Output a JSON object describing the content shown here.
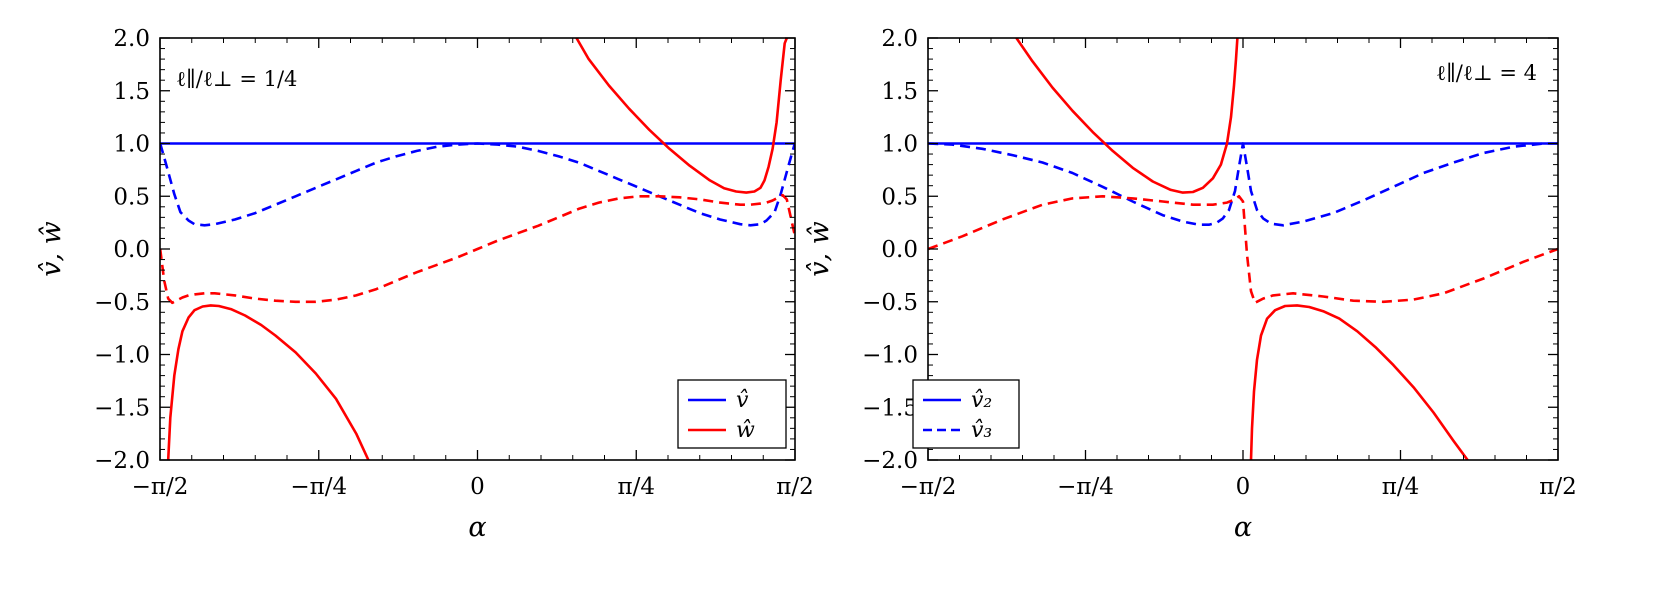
{
  "chart_data": [
    {
      "type": "line",
      "panel": "left",
      "annotation": "ℓ∥/ℓ⊥ = 1/4",
      "xlabel": "α",
      "ylabel": "v̂, ŵ",
      "xlim": [
        -1.5708,
        1.5708
      ],
      "ylim": [
        -2.0,
        2.0
      ],
      "xticks": [
        -1.5708,
        -0.7854,
        0,
        0.7854,
        1.5708
      ],
      "xtick_labels": [
        "−π/2",
        "−π/4",
        "0",
        "π/4",
        "π/2"
      ],
      "yticks": [
        -2.0,
        -1.5,
        -1.0,
        -0.5,
        0.0,
        0.5,
        1.0,
        1.5,
        2.0
      ],
      "ytick_labels": [
        "−2.0",
        "−1.5",
        "−1.0",
        "−0.5",
        "0.0",
        "0.5",
        "1.0",
        "1.5",
        "2.0"
      ],
      "grid": false,
      "legend_position": "bottom-right",
      "legend": [
        {
          "label": "v̂",
          "color": "#0000ff",
          "dash": "solid"
        },
        {
          "label": "ŵ",
          "color": "#ff0000",
          "dash": "solid"
        }
      ],
      "series": [
        {
          "color": "#0000ff",
          "dash": "solid",
          "x": [
            -1.5708,
            1.5708
          ],
          "y": [
            1.0,
            1.0
          ]
        },
        {
          "color": "#0000ff",
          "dash": "dashed",
          "x": [
            -1.57,
            -1.54,
            -1.5,
            -1.47,
            -1.43,
            -1.4,
            -1.35,
            -1.3,
            -1.2,
            -1.1,
            -1.0,
            -0.9,
            -0.8,
            -0.7,
            -0.6,
            -0.5,
            -0.4,
            -0.3,
            -0.2,
            -0.1,
            0.0,
            0.1,
            0.2,
            0.3,
            0.4,
            0.5,
            0.6,
            0.7,
            0.8,
            0.9,
            1.0,
            1.1,
            1.2,
            1.3,
            1.35,
            1.4,
            1.43,
            1.47,
            1.5,
            1.54,
            1.57
          ],
          "y": [
            1.0,
            0.8,
            0.52,
            0.35,
            0.27,
            0.235,
            0.225,
            0.235,
            0.28,
            0.34,
            0.42,
            0.5,
            0.58,
            0.66,
            0.74,
            0.82,
            0.88,
            0.93,
            0.97,
            0.99,
            1.0,
            0.99,
            0.97,
            0.93,
            0.88,
            0.82,
            0.74,
            0.66,
            0.58,
            0.5,
            0.42,
            0.34,
            0.28,
            0.235,
            0.225,
            0.235,
            0.27,
            0.35,
            0.52,
            0.8,
            1.0
          ]
        },
        {
          "color": "#ff0000",
          "dash": "dashed",
          "x": [
            -1.57,
            -1.55,
            -1.53,
            -1.51,
            -1.49,
            -1.46,
            -1.43,
            -1.4,
            -1.35,
            -1.3,
            -1.2,
            -1.1,
            -1.0,
            -0.9,
            -0.8,
            -0.7,
            -0.6,
            -0.5,
            -0.4,
            -0.3,
            -0.2,
            -0.1,
            0.0,
            0.1,
            0.2,
            0.3,
            0.4,
            0.5,
            0.6,
            0.7,
            0.8,
            0.9,
            1.0,
            1.1,
            1.2,
            1.3,
            1.35,
            1.4,
            1.43,
            1.46,
            1.49,
            1.51,
            1.53,
            1.55,
            1.57
          ],
          "y": [
            0.0,
            -0.3,
            -0.47,
            -0.51,
            -0.49,
            -0.46,
            -0.44,
            -0.43,
            -0.42,
            -0.42,
            -0.44,
            -0.47,
            -0.49,
            -0.5,
            -0.5,
            -0.48,
            -0.44,
            -0.38,
            -0.3,
            -0.22,
            -0.15,
            -0.08,
            0.0,
            0.08,
            0.15,
            0.22,
            0.3,
            0.38,
            0.44,
            0.48,
            0.5,
            0.5,
            0.49,
            0.47,
            0.44,
            0.42,
            0.42,
            0.43,
            0.44,
            0.46,
            0.49,
            0.51,
            0.47,
            0.3,
            0.13
          ]
        },
        {
          "color": "#ff0000",
          "dash": "solid",
          "x": [
            -1.53,
            -1.52,
            -1.5,
            -1.48,
            -1.46,
            -1.43,
            -1.4,
            -1.36,
            -1.32,
            -1.28,
            -1.22,
            -1.15,
            -1.07,
            -1.0,
            -0.9,
            -0.8,
            -0.7,
            -0.6,
            -0.54
          ],
          "y": [
            -2.0,
            -1.6,
            -1.2,
            -0.95,
            -0.78,
            -0.65,
            -0.58,
            -0.545,
            -0.535,
            -0.54,
            -0.57,
            -0.63,
            -0.72,
            -0.82,
            -0.98,
            -1.18,
            -1.42,
            -1.75,
            -2.0
          ]
        },
        {
          "color": "#ff0000",
          "dash": "solid",
          "x": [
            0.49,
            0.55,
            0.65,
            0.75,
            0.85,
            0.95,
            1.05,
            1.15,
            1.22,
            1.28,
            1.33,
            1.37,
            1.4,
            1.42,
            1.44,
            1.46,
            1.48,
            1.5,
            1.52,
            1.53
          ],
          "y": [
            2.0,
            1.8,
            1.55,
            1.33,
            1.13,
            0.95,
            0.79,
            0.65,
            0.575,
            0.545,
            0.535,
            0.545,
            0.58,
            0.65,
            0.78,
            0.95,
            1.2,
            1.6,
            1.95,
            2.0
          ]
        }
      ]
    },
    {
      "type": "line",
      "panel": "right",
      "annotation": "ℓ∥/ℓ⊥ = 4",
      "xlabel": "α",
      "ylabel": "v̂, ŵ",
      "xlim": [
        -1.5708,
        1.5708
      ],
      "ylim": [
        -2.0,
        2.0
      ],
      "xticks": [
        -1.5708,
        -0.7854,
        0,
        0.7854,
        1.5708
      ],
      "xtick_labels": [
        "−π/2",
        "−π/4",
        "0",
        "π/4",
        "π/2"
      ],
      "yticks": [
        -2.0,
        -1.5,
        -1.0,
        -0.5,
        0.0,
        0.5,
        1.0,
        1.5,
        2.0
      ],
      "ytick_labels": [
        "−2.0",
        "−1.5",
        "−1.0",
        "−0.5",
        "0.0",
        "0.5",
        "1.0",
        "1.5",
        "2.0"
      ],
      "grid": false,
      "legend_position": "bottom-left",
      "legend": [
        {
          "label": "v̂₂",
          "color": "#0000ff",
          "dash": "solid"
        },
        {
          "label": "v̂₃",
          "color": "#0000ff",
          "dash": "dashed"
        }
      ],
      "series": [
        {
          "color": "#0000ff",
          "dash": "solid",
          "x": [
            -1.5708,
            1.5708
          ],
          "y": [
            1.0,
            1.0
          ]
        },
        {
          "color": "#0000ff",
          "dash": "dashed",
          "x": [
            -1.57,
            -1.45,
            -1.3,
            -1.15,
            -1.0,
            -0.85,
            -0.7,
            -0.55,
            -0.4,
            -0.3,
            -0.22,
            -0.17,
            -0.13,
            -0.1,
            -0.07,
            -0.04,
            -0.02,
            0.0,
            0.02,
            0.04,
            0.07,
            0.1,
            0.14,
            0.2,
            0.3,
            0.45,
            0.6,
            0.75,
            0.9,
            1.05,
            1.2,
            1.35,
            1.5,
            1.57
          ],
          "y": [
            1.0,
            0.99,
            0.95,
            0.89,
            0.82,
            0.72,
            0.59,
            0.45,
            0.32,
            0.26,
            0.23,
            0.23,
            0.25,
            0.29,
            0.37,
            0.55,
            0.78,
            1.0,
            0.78,
            0.55,
            0.37,
            0.29,
            0.24,
            0.225,
            0.26,
            0.34,
            0.46,
            0.59,
            0.72,
            0.82,
            0.91,
            0.97,
            1.0,
            1.0
          ]
        },
        {
          "color": "#ff0000",
          "dash": "dashed",
          "x": [
            -1.57,
            -1.4,
            -1.2,
            -1.0,
            -0.85,
            -0.7,
            -0.55,
            -0.4,
            -0.25,
            -0.15,
            -0.08,
            -0.04,
            -0.02,
            0.0,
            0.02,
            0.04,
            0.06,
            0.1,
            0.15,
            0.25,
            0.4,
            0.55,
            0.7,
            0.85,
            1.0,
            1.2,
            1.4,
            1.57
          ],
          "y": [
            0.0,
            0.12,
            0.28,
            0.42,
            0.48,
            0.5,
            0.48,
            0.45,
            0.42,
            0.42,
            0.44,
            0.47,
            0.5,
            0.45,
            -0.05,
            -0.4,
            -0.51,
            -0.47,
            -0.44,
            -0.42,
            -0.45,
            -0.49,
            -0.5,
            -0.48,
            -0.42,
            -0.28,
            -0.12,
            0.0
          ]
        },
        {
          "color": "#ff0000",
          "dash": "solid",
          "x": [
            -1.13,
            -1.05,
            -0.95,
            -0.85,
            -0.75,
            -0.65,
            -0.55,
            -0.45,
            -0.36,
            -0.3,
            -0.25,
            -0.2,
            -0.15,
            -0.11,
            -0.08,
            -0.06,
            -0.045,
            -0.035,
            -0.028
          ],
          "y": [
            2.0,
            1.78,
            1.53,
            1.31,
            1.11,
            0.93,
            0.77,
            0.64,
            0.56,
            0.535,
            0.54,
            0.58,
            0.67,
            0.8,
            1.0,
            1.25,
            1.55,
            1.8,
            2.0
          ]
        },
        {
          "color": "#ff0000",
          "dash": "solid",
          "x": [
            0.04,
            0.045,
            0.055,
            0.07,
            0.09,
            0.12,
            0.16,
            0.21,
            0.27,
            0.33,
            0.4,
            0.48,
            0.57,
            0.66,
            0.75,
            0.85,
            0.95,
            1.05,
            1.12
          ],
          "y": [
            -2.0,
            -1.7,
            -1.35,
            -1.05,
            -0.82,
            -0.66,
            -0.58,
            -0.54,
            -0.535,
            -0.55,
            -0.59,
            -0.66,
            -0.78,
            -0.93,
            -1.1,
            -1.31,
            -1.55,
            -1.82,
            -2.0
          ]
        }
      ]
    }
  ]
}
